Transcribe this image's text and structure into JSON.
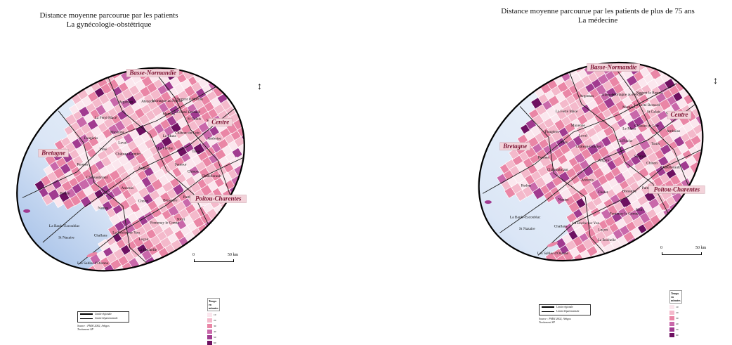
{
  "colors": {
    "sea": "#7fa6de",
    "sea_light": "#dbe6f6",
    "scale": [
      "#fbe7ee",
      "#f4b9cb",
      "#ea86a6",
      "#c968aa",
      "#a13b90",
      "#6e1161"
    ],
    "boundary": "#1b1b1b",
    "region_label_bg": "#f3d3da"
  },
  "panels": [
    {
      "id": "left",
      "title_line1": "Distance moyenne parcourue par les patients",
      "title_line2": "La gynécologie-obstétrique",
      "regions": [
        "Basse-Normandie",
        "Bretagne",
        "Centre",
        "Poitou-Charentes"
      ],
      "cities": [
        "La Ferté Macé",
        "Argentan",
        "Alençon",
        "Fougères",
        "Mayenne",
        "Mortagne au Perche",
        "Nogent le Rotrou",
        "Vitré",
        "Laval",
        "Mamers",
        "La Ferté Bernard",
        "Rennes",
        "Château-Gontier",
        "Le Mans",
        "St Calais",
        "Redon",
        "Châteaubriant",
        "La Flèche",
        "Château du Loir",
        "Vendôme",
        "Angers",
        "Ancenis",
        "Tours",
        "Amboise",
        "La Baule-Escoublac",
        "St Nazaire",
        "Nantes",
        "Saumur",
        "Cholet",
        "Chinon",
        "Challans",
        "Châtellerault",
        "La Roche sur Yon",
        "Bressuire",
        "Parthenay",
        "Les Sables d'Olonne",
        "Luçon",
        "Fontenay le Comte",
        "Niort",
        "La Rochelle"
      ],
      "scale": {
        "zero": "0",
        "distance": "50 km"
      },
      "legend_title": "Temps en minutes",
      "legend_labels": [
        "10",
        "20",
        "30",
        "40",
        "50",
        "60"
      ],
      "box_legend": [
        "Limite régionale",
        "Limite départementale"
      ],
      "source_line1": "Source : PMSI 2002, Arhgos",
      "source_line2": "Traitement SP"
    },
    {
      "id": "right",
      "title_line1": "Distance moyenne parcourue par les patients de plus de 75 ans",
      "title_line2": "La médecine",
      "regions": [
        "Basse-Normandie",
        "Bretagne",
        "Centre",
        "Poitou-Charentes"
      ],
      "cities": [
        "La Ferté Macé",
        "Argentan",
        "Alençon",
        "Fougères",
        "Mayenne",
        "Mortagne au Perche",
        "Nogent le Rotrou",
        "Vitré",
        "Laval",
        "Mamers",
        "La Ferté Bernard",
        "Rennes",
        "Château-Gontier",
        "Le Mans",
        "St Calais",
        "Redon",
        "Châteaubriant",
        "La Flèche",
        "Château du Loir",
        "Vendôme",
        "Angers",
        "Ancenis",
        "Tours",
        "Amboise",
        "La Baule-Escoublac",
        "St Nazaire",
        "Nantes",
        "Saumur",
        "Cholet",
        "Chinon",
        "Challans",
        "Châtellerault",
        "La Roche sur Yon",
        "Bressuire",
        "Parthenay",
        "Les Sables d'Olonne",
        "Luçon",
        "Fontenay le Comte",
        "Niort",
        "La Rochelle"
      ],
      "scale": {
        "zero": "0",
        "distance": "50 km"
      },
      "legend_title": "Temps en minutes",
      "legend_labels": [
        "10",
        "20",
        "30",
        "40",
        "50",
        "60"
      ],
      "box_legend": [
        "Limite régionale",
        "Limite départementale"
      ],
      "source_line1": "Source : PMSI 2002, Arhgos",
      "source_line2": "Traitement SP"
    }
  ]
}
